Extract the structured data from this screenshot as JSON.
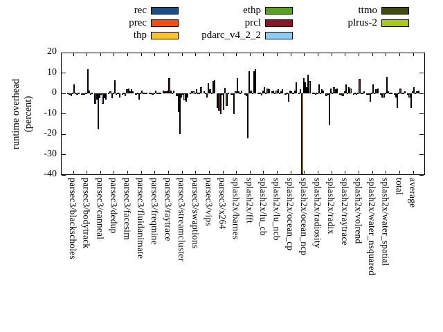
{
  "figure": {
    "background": "#ffffff",
    "axis_color": "#000000"
  },
  "legend": {
    "position": "top",
    "items": [
      {
        "label": "rec",
        "color": "#1a4f8c",
        "col": 0,
        "row": 0
      },
      {
        "label": "prec",
        "color": "#f74a0e",
        "col": 0,
        "row": 1
      },
      {
        "label": "thp",
        "color": "#fcc426",
        "col": 0,
        "row": 2
      },
      {
        "label": "ethp",
        "color": "#59a123",
        "col": 1,
        "row": 0
      },
      {
        "label": "prcl",
        "color": "#8c1427",
        "col": 1,
        "row": 1
      },
      {
        "label": "pdarc_v4_2_2",
        "color": "#8bccf2",
        "col": 1,
        "row": 2
      },
      {
        "label": "ttmo",
        "color": "#404c10",
        "col": 2,
        "row": 0
      },
      {
        "label": "plrus-2",
        "color": "#a9ca14",
        "col": 2,
        "row": 1
      }
    ]
  },
  "chart_data": {
    "type": "bar",
    "title": "",
    "xlabel": "",
    "ylabel": "runtime overhead (percent)",
    "ylabel_lines": [
      "runtime overhead",
      "(percent)"
    ],
    "ylim": [
      -40,
      20
    ],
    "yticks": [
      20,
      10,
      0,
      -10,
      -20,
      -30,
      -40
    ],
    "grid": false,
    "legend_position": "top",
    "categories": [
      "parsec3/blackscholes",
      "parsec3/bodytrack",
      "parsec3/canneal",
      "parsec3/dedup",
      "parsec3/facesim",
      "parsec3/fluidanimate",
      "parsec3/freqmine",
      "parsec3/raytrace",
      "parsec3/streamcluster",
      "parsec3/swaptions",
      "parsec3/vips",
      "parsec3/x264",
      "splash2x/barnes",
      "splash2x/fft",
      "splash2x/lu_cb",
      "splash2x/lu_ncb",
      "splash2x/ocean_cp",
      "splash2x/ocean_ncp",
      "splash2x/radiosity",
      "splash2x/radix",
      "splash2x/raytrace",
      "splash2x/volrend",
      "splash2x/water_nsquared",
      "splash2x/water_spatial",
      "total",
      "average"
    ],
    "series": [
      {
        "name": "rec",
        "color": "#1a4f8c",
        "values": [
          0.3,
          -0.3,
          -5,
          0.3,
          -0.3,
          -0.3,
          0.2,
          1.5,
          -1.5,
          0.5,
          1,
          -7,
          -0.5,
          -0.5,
          0.3,
          1,
          -0.5,
          0.5,
          0.3,
          -1.5,
          -0.5,
          -0.3,
          -0.5,
          -0.3,
          -0.3,
          -0.3
        ]
      },
      {
        "name": "prec",
        "color": "#f74a0e",
        "values": [
          -0.5,
          -0.3,
          -3,
          1,
          0.3,
          0.3,
          0.3,
          1,
          -9,
          1,
          0.3,
          -8.5,
          -0.5,
          -1.5,
          0.3,
          1.5,
          0.3,
          2,
          0.5,
          -0.5,
          -1,
          0.3,
          -0.3,
          -2,
          -2,
          -2
        ]
      },
      {
        "name": "thp",
        "color": "#fcc426",
        "values": [
          -1.5,
          -0.5,
          -17.5,
          -2.5,
          -1.5,
          -3,
          -0.7,
          1,
          -20,
          1,
          -2,
          -10,
          -10,
          -22,
          -1,
          0.3,
          -4,
          -40,
          -0.5,
          -15.5,
          -1.5,
          -0.5,
          -4,
          -2,
          -7,
          -7
        ]
      },
      {
        "name": "ethp",
        "color": "#59a123",
        "values": [
          0.3,
          0.3,
          -2.5,
          0.5,
          2,
          0.5,
          0.3,
          1.5,
          -2,
          0.5,
          5,
          -0.5,
          1,
          11,
          1.5,
          1.5,
          1.5,
          7.5,
          0.5,
          2.5,
          1,
          0.5,
          0.5,
          0.5,
          0.5,
          1
        ]
      },
      {
        "name": "prcl",
        "color": "#8c1427",
        "values": [
          4.3,
          12,
          -0.5,
          6.5,
          2.3,
          1.5,
          1.5,
          7.5,
          -0.5,
          2,
          2,
          -8,
          7.4,
          1.5,
          3,
          2.2,
          1,
          5.5,
          4.5,
          0.5,
          4.5,
          7,
          4.5,
          8,
          2.5,
          3
        ]
      },
      {
        "name": "pdarc_v4_2_2",
        "color": "#8bccf2",
        "values": [
          0.3,
          1.5,
          -5,
          -0.5,
          1,
          0.3,
          0.3,
          1.5,
          -3.5,
          0.5,
          0.5,
          2.7,
          1,
          0.5,
          0.3,
          0.3,
          0.3,
          3,
          0.5,
          3,
          0.5,
          0.5,
          0.5,
          1,
          0.3,
          0.5
        ]
      },
      {
        "name": "ttmo",
        "color": "#404c10",
        "values": [
          -0.3,
          -0.2,
          -2.5,
          0.3,
          2,
          0.5,
          0.2,
          0.5,
          -4,
          0.5,
          6,
          -6,
          0.5,
          11,
          2.5,
          1,
          1.5,
          9,
          2,
          2,
          3,
          0.5,
          2,
          0.5,
          0.5,
          1
        ]
      },
      {
        "name": "plrus-2",
        "color": "#a9ca14",
        "values": [
          0.3,
          0.3,
          -3,
          -2,
          1,
          0.5,
          0.5,
          1.5,
          -2,
          3,
          6.5,
          0.5,
          1.5,
          12,
          2,
          2,
          5.5,
          6,
          1.5,
          2.5,
          2.5,
          1,
          2.5,
          0.5,
          1,
          1.5
        ]
      }
    ]
  }
}
